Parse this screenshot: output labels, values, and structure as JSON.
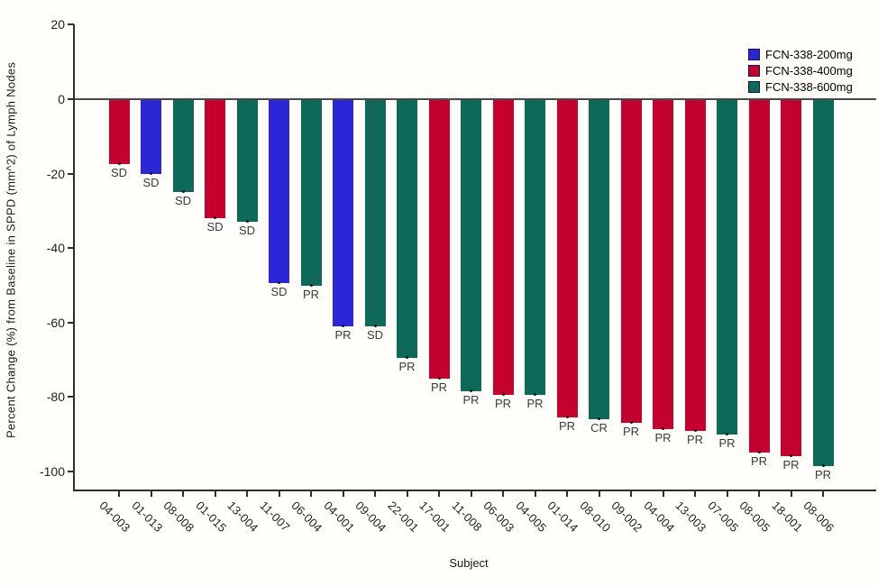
{
  "chart_data": {
    "type": "bar",
    "title": "",
    "xlabel": "Subject",
    "ylabel": "Percent Change (%) from Baseline in SPPD (mm^2) of Lymph Nodes",
    "ylim": [
      -100,
      20
    ],
    "yticks": [
      20,
      0,
      -20,
      -40,
      -60,
      -80,
      -100
    ],
    "grid": "off",
    "legend_position": "top-right",
    "legend": [
      {
        "label": "FCN-338-200mg",
        "color": "#2B27D6"
      },
      {
        "label": "FCN-338-400mg",
        "color": "#C4022E"
      },
      {
        "label": "FCN-338-600mg",
        "color": "#0E6A58"
      }
    ],
    "bars": [
      {
        "subject": "04-003",
        "group": "FCN-338-400mg",
        "value": -17.5,
        "response": "SD"
      },
      {
        "subject": "01-013",
        "group": "FCN-338-200mg",
        "value": -20,
        "response": "SD"
      },
      {
        "subject": "08-008",
        "group": "FCN-338-600mg",
        "value": -25,
        "response": "SD"
      },
      {
        "subject": "01-015",
        "group": "FCN-338-400mg",
        "value": -32,
        "response": "SD"
      },
      {
        "subject": "13-004",
        "group": "FCN-338-600mg",
        "value": -33,
        "response": "SD"
      },
      {
        "subject": "11-007",
        "group": "FCN-338-200mg",
        "value": -49.5,
        "response": "SD"
      },
      {
        "subject": "06-004",
        "group": "FCN-338-600mg",
        "value": -50,
        "response": "PR"
      },
      {
        "subject": "04-001",
        "group": "FCN-338-200mg",
        "value": -61,
        "response": "PR"
      },
      {
        "subject": "09-004",
        "group": "FCN-338-600mg",
        "value": -61,
        "response": "SD"
      },
      {
        "subject": "22-001",
        "group": "FCN-338-600mg",
        "value": -69.5,
        "response": "PR"
      },
      {
        "subject": "17-001",
        "group": "FCN-338-400mg",
        "value": -75,
        "response": "PR"
      },
      {
        "subject": "11-008",
        "group": "FCN-338-600mg",
        "value": -78.5,
        "response": "PR"
      },
      {
        "subject": "06-003",
        "group": "FCN-338-400mg",
        "value": -79.5,
        "response": "PR"
      },
      {
        "subject": "04-005",
        "group": "FCN-338-600mg",
        "value": -79.5,
        "response": "PR"
      },
      {
        "subject": "01-014",
        "group": "FCN-338-400mg",
        "value": -85.5,
        "response": "PR"
      },
      {
        "subject": "08-010",
        "group": "FCN-338-600mg",
        "value": -86,
        "response": "CR"
      },
      {
        "subject": "09-002",
        "group": "FCN-338-400mg",
        "value": -87,
        "response": "PR"
      },
      {
        "subject": "04-004",
        "group": "FCN-338-400mg",
        "value": -88.5,
        "response": "PR"
      },
      {
        "subject": "13-003",
        "group": "FCN-338-400mg",
        "value": -89,
        "response": "PR"
      },
      {
        "subject": "07-005",
        "group": "FCN-338-600mg",
        "value": -90,
        "response": "PR"
      },
      {
        "subject": "08-005",
        "group": "FCN-338-400mg",
        "value": -95,
        "response": "PR"
      },
      {
        "subject": "18-001",
        "group": "FCN-338-400mg",
        "value": -96,
        "response": "PR"
      },
      {
        "subject": "08-006",
        "group": "FCN-338-600mg",
        "value": -98.5,
        "response": "PR"
      }
    ]
  }
}
